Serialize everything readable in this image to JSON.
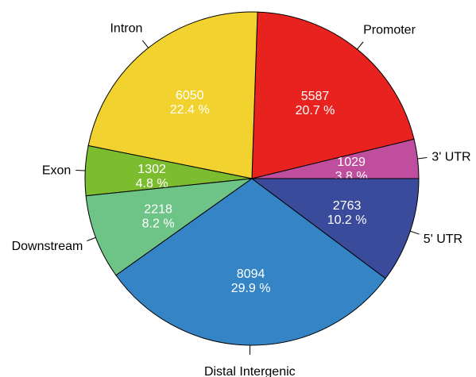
{
  "chart_data": {
    "type": "pie",
    "slices": [
      {
        "label": "3' UTR",
        "value": 1029,
        "percent": "3.8 %",
        "color": "#bf4e9f"
      },
      {
        "label": "Promoter",
        "value": 5587,
        "percent": "20.7 %",
        "color": "#e8231f"
      },
      {
        "label": "Intron",
        "value": 6050,
        "percent": "22.4 %",
        "color": "#f2d22f"
      },
      {
        "label": "Exon",
        "value": 1302,
        "percent": "4.8 %",
        "color": "#7cbd2f"
      },
      {
        "label": "Downstream",
        "value": 2218,
        "percent": "8.2 %",
        "color": "#6ec386"
      },
      {
        "label": "Distal Intergenic",
        "value": 8094,
        "percent": "29.9 %",
        "color": "#3585c6"
      },
      {
        "label": "5' UTR",
        "value": 2763,
        "percent": "10.2 %",
        "color": "#3b4b9c"
      }
    ],
    "start": "right",
    "direction": "counterclockwise",
    "legend": "none"
  }
}
